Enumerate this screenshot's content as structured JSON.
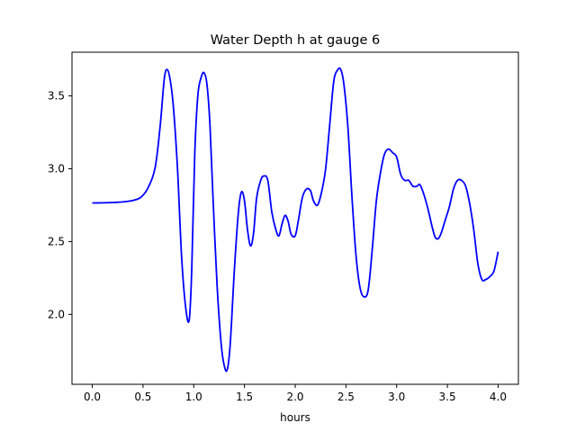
{
  "chart_data": {
    "type": "line",
    "title": "Water Depth h at gauge 6",
    "xlabel": "hours",
    "ylabel": "",
    "xlim": [
      -0.2,
      4.2
    ],
    "ylim": [
      1.52,
      3.8
    ],
    "xticks": [
      0.0,
      0.5,
      1.0,
      1.5,
      2.0,
      2.5,
      3.0,
      3.5,
      4.0
    ],
    "xtick_labels": [
      "0.0",
      "0.5",
      "1.0",
      "1.5",
      "2.0",
      "2.5",
      "3.0",
      "3.5",
      "4.0"
    ],
    "yticks": [
      2.0,
      2.5,
      3.0,
      3.5
    ],
    "ytick_labels": [
      "2.0",
      "2.5",
      "3.0",
      "3.5"
    ],
    "grid": false,
    "series": [
      {
        "color": "#0000ff",
        "points": [
          [
            0.0,
            2.765
          ],
          [
            0.1,
            2.766
          ],
          [
            0.2,
            2.768
          ],
          [
            0.3,
            2.772
          ],
          [
            0.4,
            2.782
          ],
          [
            0.48,
            2.805
          ],
          [
            0.55,
            2.87
          ],
          [
            0.62,
            3.01
          ],
          [
            0.67,
            3.3
          ],
          [
            0.71,
            3.62
          ],
          [
            0.74,
            3.68
          ],
          [
            0.77,
            3.6
          ],
          [
            0.8,
            3.42
          ],
          [
            0.84,
            3.0
          ],
          [
            0.88,
            2.4
          ],
          [
            0.92,
            2.05
          ],
          [
            0.955,
            1.96
          ],
          [
            0.98,
            2.3
          ],
          [
            1.01,
            3.1
          ],
          [
            1.04,
            3.5
          ],
          [
            1.07,
            3.62
          ],
          [
            1.1,
            3.66
          ],
          [
            1.13,
            3.58
          ],
          [
            1.16,
            3.3
          ],
          [
            1.19,
            2.8
          ],
          [
            1.23,
            2.2
          ],
          [
            1.27,
            1.8
          ],
          [
            1.3,
            1.65
          ],
          [
            1.33,
            1.62
          ],
          [
            1.36,
            1.8
          ],
          [
            1.4,
            2.3
          ],
          [
            1.44,
            2.7
          ],
          [
            1.47,
            2.84
          ],
          [
            1.5,
            2.78
          ],
          [
            1.53,
            2.58
          ],
          [
            1.56,
            2.47
          ],
          [
            1.59,
            2.56
          ],
          [
            1.62,
            2.8
          ],
          [
            1.66,
            2.92
          ],
          [
            1.69,
            2.95
          ],
          [
            1.73,
            2.92
          ],
          [
            1.77,
            2.7
          ],
          [
            1.81,
            2.58
          ],
          [
            1.84,
            2.54
          ],
          [
            1.87,
            2.62
          ],
          [
            1.9,
            2.68
          ],
          [
            1.93,
            2.64
          ],
          [
            1.96,
            2.55
          ],
          [
            2.0,
            2.54
          ],
          [
            2.03,
            2.64
          ],
          [
            2.07,
            2.8
          ],
          [
            2.11,
            2.86
          ],
          [
            2.15,
            2.85
          ],
          [
            2.18,
            2.78
          ],
          [
            2.22,
            2.75
          ],
          [
            2.26,
            2.84
          ],
          [
            2.3,
            3.0
          ],
          [
            2.34,
            3.3
          ],
          [
            2.38,
            3.6
          ],
          [
            2.42,
            3.68
          ],
          [
            2.45,
            3.68
          ],
          [
            2.48,
            3.58
          ],
          [
            2.52,
            3.28
          ],
          [
            2.56,
            2.8
          ],
          [
            2.6,
            2.4
          ],
          [
            2.64,
            2.18
          ],
          [
            2.68,
            2.12
          ],
          [
            2.72,
            2.17
          ],
          [
            2.76,
            2.45
          ],
          [
            2.8,
            2.78
          ],
          [
            2.84,
            2.97
          ],
          [
            2.88,
            3.1
          ],
          [
            2.92,
            3.135
          ],
          [
            2.96,
            3.11
          ],
          [
            3.0,
            3.08
          ],
          [
            3.04,
            2.96
          ],
          [
            3.08,
            2.92
          ],
          [
            3.12,
            2.92
          ],
          [
            3.16,
            2.88
          ],
          [
            3.2,
            2.88
          ],
          [
            3.23,
            2.89
          ],
          [
            3.27,
            2.82
          ],
          [
            3.31,
            2.72
          ],
          [
            3.35,
            2.6
          ],
          [
            3.38,
            2.53
          ],
          [
            3.41,
            2.52
          ],
          [
            3.44,
            2.56
          ],
          [
            3.48,
            2.65
          ],
          [
            3.52,
            2.74
          ],
          [
            3.56,
            2.86
          ],
          [
            3.6,
            2.92
          ],
          [
            3.64,
            2.92
          ],
          [
            3.68,
            2.88
          ],
          [
            3.72,
            2.76
          ],
          [
            3.76,
            2.58
          ],
          [
            3.8,
            2.35
          ],
          [
            3.84,
            2.24
          ],
          [
            3.88,
            2.24
          ],
          [
            3.92,
            2.26
          ],
          [
            3.96,
            2.3
          ],
          [
            4.0,
            2.43
          ]
        ]
      }
    ]
  }
}
